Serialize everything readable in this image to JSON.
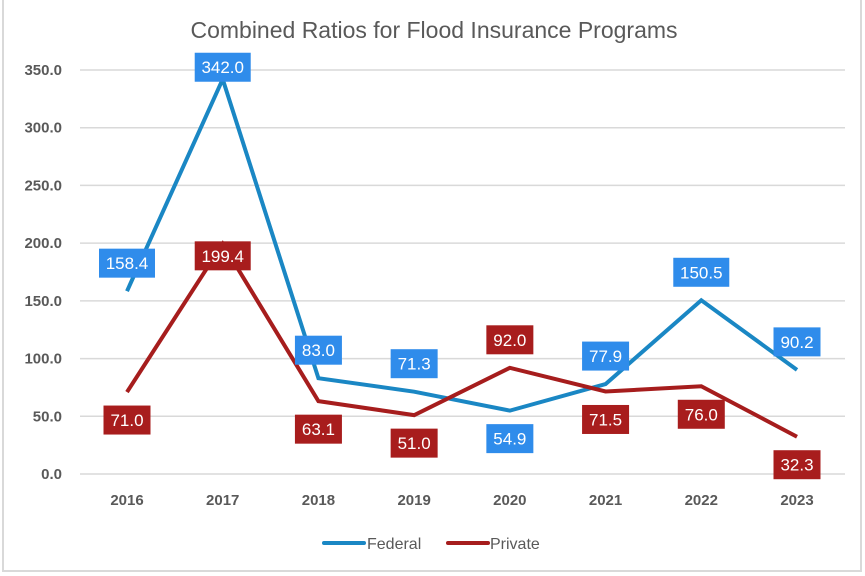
{
  "chart_data": {
    "type": "line",
    "title": "Combined Ratios for Flood Insurance Programs",
    "xlabel": "",
    "ylabel": "",
    "categories": [
      "2016",
      "2017",
      "2018",
      "2019",
      "2020",
      "2021",
      "2022",
      "2023"
    ],
    "ylim": [
      0,
      350
    ],
    "yticks": [
      "0.0",
      "50.0",
      "100.0",
      "150.0",
      "200.0",
      "250.0",
      "300.0",
      "350.0"
    ],
    "ytick_values": [
      0,
      50,
      100,
      150,
      200,
      250,
      300,
      350
    ],
    "grid": true,
    "legend_position": "bottom-center",
    "series": [
      {
        "name": "Federal",
        "color": "#1a87c4",
        "label_color": "#2f8ceb",
        "values": [
          158.4,
          342.0,
          83.0,
          71.3,
          54.9,
          77.9,
          150.5,
          90.2
        ],
        "labels": [
          "158.4",
          "342.0",
          "83.0",
          "71.3",
          "54.9",
          "77.9",
          "150.5",
          "90.2"
        ],
        "label_positions": [
          "above",
          "at",
          "above",
          "above",
          "below",
          "above",
          "above",
          "above"
        ]
      },
      {
        "name": "Private",
        "color": "#a61d1d",
        "label_color": "#a81d1d",
        "values": [
          71.0,
          199.4,
          63.1,
          51.0,
          92.0,
          71.5,
          76.0,
          32.3
        ],
        "labels": [
          "71.0",
          "199.4",
          "63.1",
          "51.0",
          "92.0",
          "71.5",
          "76.0",
          "32.3"
        ],
        "label_positions": [
          "below",
          "at",
          "below",
          "below",
          "above",
          "below",
          "below",
          "below"
        ]
      }
    ]
  }
}
